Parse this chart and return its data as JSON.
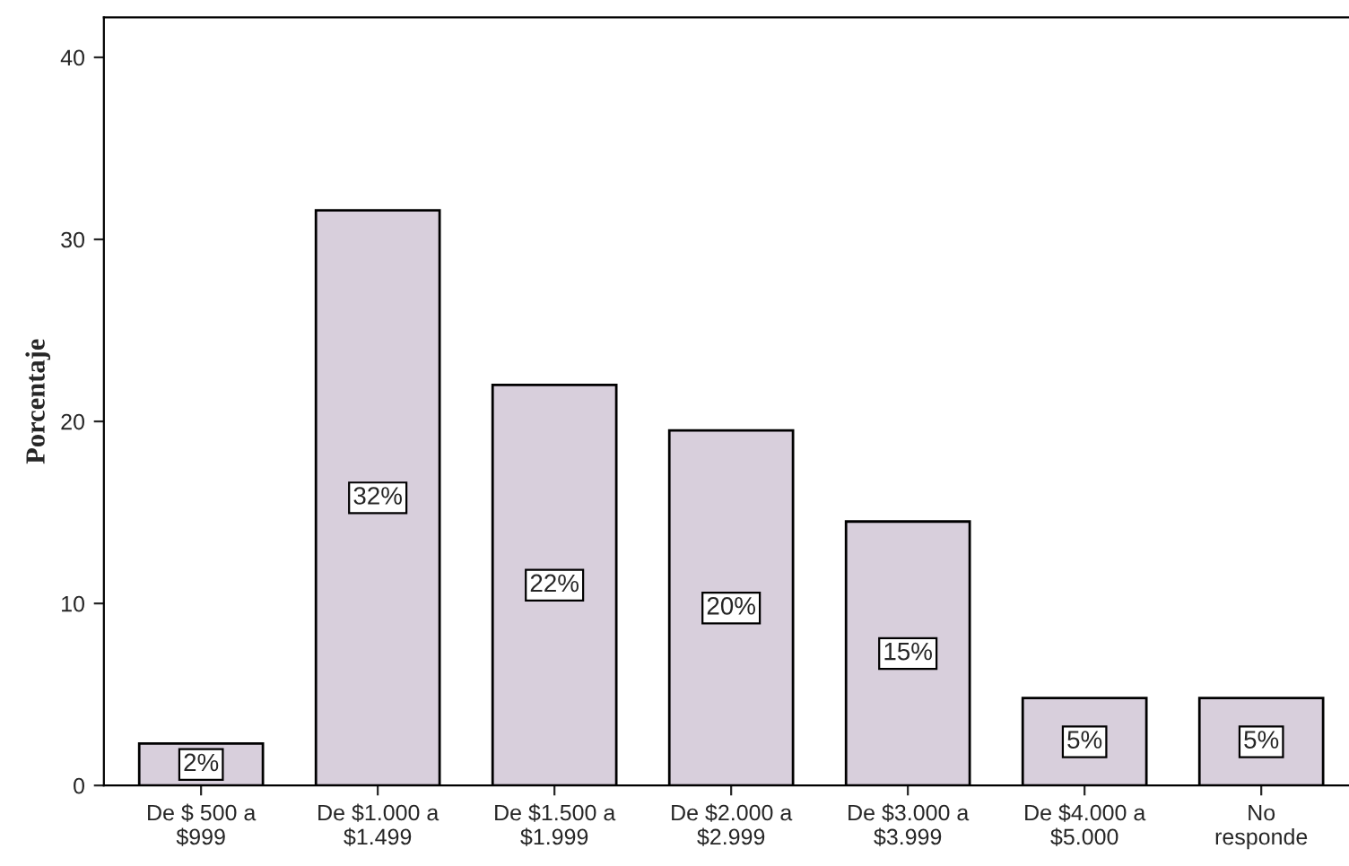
{
  "chart_data": {
    "type": "bar",
    "ylabel": "Porcentaje",
    "categories": [
      "De $ 500 a\n$999",
      "De $1.000 a\n$1.499",
      "De $1.500 a\n$1.999",
      "De $2.000 a\n$2.999",
      "De $3.000 a\n$3.999",
      "De $4.000 a\n$5.000",
      "No\nresponde"
    ],
    "values": [
      2.3,
      31.6,
      22.0,
      19.5,
      14.5,
      4.8,
      4.8
    ],
    "value_labels": [
      "2%",
      "32%",
      "22%",
      "20%",
      "15%",
      "5%",
      "5%"
    ],
    "color": "#d8cfdc",
    "ylim": [
      0,
      42.2
    ],
    "yticks": [
      0,
      10,
      20,
      30,
      40
    ],
    "grid": false
  }
}
